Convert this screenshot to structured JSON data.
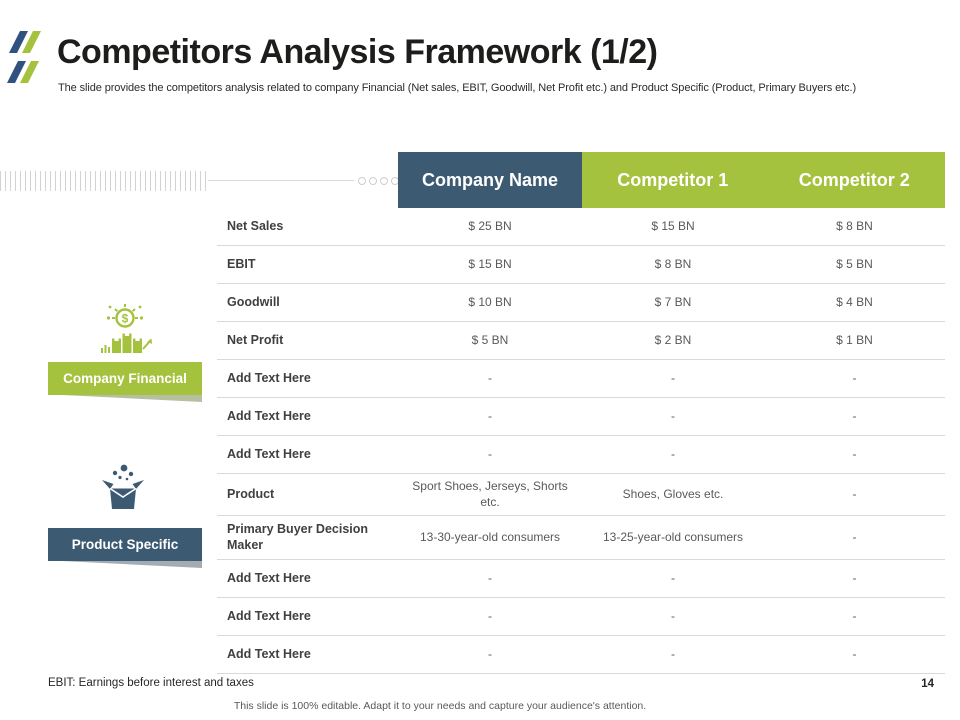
{
  "slide": {
    "title": "Competitors Analysis Framework (1/2)",
    "subtitle": "The slide provides the competitors analysis related to company Financial (Net sales, EBIT,  Goodwill, Net Profit etc.) and Product Specific (Product, Primary Buyers etc.)",
    "footnote": "EBIT: Earnings before interest and taxes",
    "footer_note": "This slide is 100% editable. Adapt it to your needs and capture your audience's attention.",
    "page_number": "14"
  },
  "colors": {
    "accent_green": "#a5c23e",
    "accent_navy": "#3d5a73",
    "logo_blue": "#315181",
    "separator": "#d9d9d9"
  },
  "side_labels": [
    {
      "label": "Company Financial",
      "icon": "financial-growth-icon",
      "color": "#a5c23e"
    },
    {
      "label": "Product Specific",
      "icon": "open-box-icon",
      "color": "#3d5a73"
    }
  ],
  "table": {
    "columns": [
      "Company Name",
      "Competitor 1",
      "Competitor 2"
    ],
    "rows": [
      {
        "label": "Net Sales",
        "values": [
          "$ 25 BN",
          "$ 15 BN",
          "$ 8 BN"
        ]
      },
      {
        "label": "EBIT",
        "values": [
          "$ 15 BN",
          "$ 8 BN",
          "$ 5 BN"
        ]
      },
      {
        "label": "Goodwill",
        "values": [
          "$ 10 BN",
          "$ 7 BN",
          "$ 4 BN"
        ]
      },
      {
        "label": "Net Profit",
        "values": [
          "$ 5 BN",
          "$ 2 BN",
          "$ 1 BN"
        ]
      },
      {
        "label": "Add Text Here",
        "values": [
          "-",
          "-",
          "-"
        ]
      },
      {
        "label": "Add Text Here",
        "values": [
          "-",
          "-",
          "-"
        ]
      },
      {
        "label": "Add Text Here",
        "values": [
          "-",
          "-",
          "-"
        ]
      },
      {
        "label": "Product",
        "values": [
          "Sport Shoes, Jerseys, Shorts etc.",
          "Shoes, Gloves etc.",
          "-"
        ]
      },
      {
        "label": "Primary Buyer Decision Maker",
        "values": [
          "13-30-year-old consumers",
          "13-25-year-old consumers",
          "-"
        ]
      },
      {
        "label": "Add Text Here",
        "values": [
          "-",
          "-",
          "-"
        ]
      },
      {
        "label": "Add Text Here",
        "values": [
          "-",
          "-",
          "-"
        ]
      },
      {
        "label": "Add Text Here",
        "values": [
          "-",
          "-",
          "-"
        ]
      }
    ]
  }
}
